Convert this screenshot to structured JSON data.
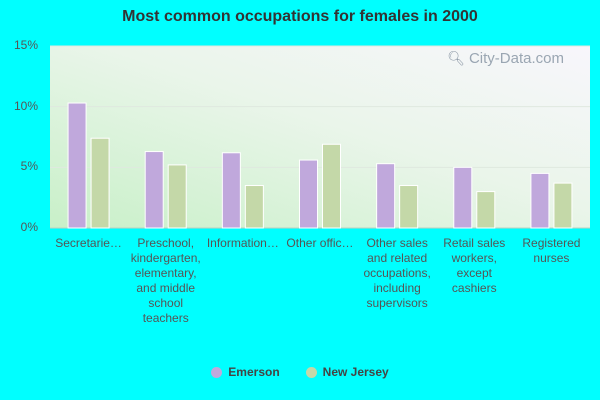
{
  "chart_data": {
    "type": "bar",
    "title": "Most common occupations for females in 2000",
    "categories": [
      "Secretarie…",
      "Preschool, kindergarten, elementary, and middle school teachers",
      "Information…",
      "Other offic…",
      "Other sales and related occupations, including supervisors",
      "Retail sales workers, except cashiers",
      "Registered nurses"
    ],
    "series": [
      {
        "name": "Emerson",
        "values": [
          10.3,
          6.3,
          6.2,
          5.6,
          5.3,
          5.0,
          4.5
        ]
      },
      {
        "name": "New Jersey",
        "values": [
          7.4,
          5.2,
          3.5,
          6.9,
          3.5,
          3.0,
          3.7
        ]
      }
    ],
    "ylim": [
      0,
      15
    ],
    "yticks": [
      "0%",
      "5%",
      "10%",
      "15%"
    ],
    "ytick_values": [
      0,
      5,
      10,
      15
    ],
    "legend_position": "bottom",
    "colors": {
      "Emerson": "#c0a8dc",
      "New Jersey": "#c4d8a8",
      "background": "#00ffff"
    }
  },
  "watermark": "City-Data.com",
  "watermark_icon": "magnifier-icon"
}
